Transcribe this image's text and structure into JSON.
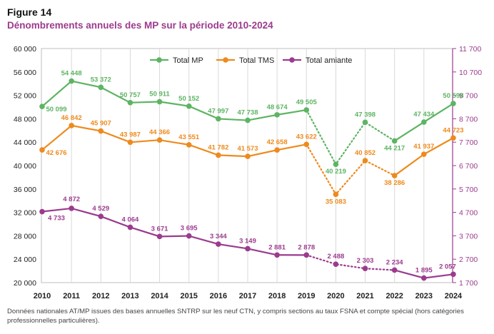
{
  "figure_label": "Figure 14",
  "title": "Dénombrements annuels des MP sur la période 2010-2024",
  "note": "Données nationales AT/MP issues des bases annuelles SNTRP sur les neuf CTN, y compris sections au taux FSNA et compte spécial (hors catégories professionnelles particulières).",
  "chart_data": {
    "type": "line",
    "title": "Dénombrements annuels des MP sur la période 2010-2024",
    "x": [
      "2010",
      "2011",
      "2012",
      "2013",
      "2014",
      "2015",
      "2016",
      "2017",
      "2018",
      "2019",
      "2020",
      "2021",
      "2022",
      "2023",
      "2024"
    ],
    "left_axis": {
      "range": [
        20000,
        60000
      ],
      "ticks": [
        20000,
        24000,
        28000,
        32000,
        36000,
        40000,
        44000,
        48000,
        52000,
        56000,
        60000
      ],
      "tick_labels": [
        "20 000",
        "24 000",
        "28 000",
        "32 000",
        "36 000",
        "40 000",
        "44 000",
        "48 000",
        "52 000",
        "56 000",
        "60 000"
      ]
    },
    "right_axis": {
      "range": [
        1700,
        11700
      ],
      "ticks": [
        1700,
        2700,
        3700,
        4700,
        5700,
        6700,
        7700,
        8700,
        9700,
        10700,
        11700
      ],
      "tick_labels": [
        "1 700",
        "2 700",
        "3 700",
        "4 700",
        "5 700",
        "6 700",
        "7 700",
        "8 700",
        "9 700",
        "10 700",
        "11 700"
      ],
      "color": "#9b3b8e"
    },
    "grid": "vertical",
    "legend_position": "top",
    "dotted_segment": [
      "2019",
      "2022"
    ],
    "series": [
      {
        "name": "Total MP",
        "axis": "left",
        "color": "#5db463",
        "values": [
          50099,
          54448,
          53372,
          50757,
          50911,
          50152,
          47997,
          47738,
          48674,
          49505,
          40219,
          47398,
          44217,
          47434,
          50598
        ],
        "labels": [
          "50 099",
          "54 448",
          "53 372",
          "50 757",
          "50 911",
          "50 152",
          "47 997",
          "47 738",
          "48 674",
          "49 505",
          "40 219",
          "47 398",
          "44 217",
          "47 434",
          "50 598"
        ]
      },
      {
        "name": "Total TMS",
        "axis": "left",
        "color": "#ee8a1d",
        "values": [
          42676,
          46842,
          45907,
          43987,
          44366,
          43551,
          41782,
          41573,
          42658,
          43622,
          35083,
          40852,
          38286,
          41937,
          44723
        ],
        "labels": [
          "42 676",
          "46 842",
          "45 907",
          "43 987",
          "44 366",
          "43 551",
          "41 782",
          "41 573",
          "42 658",
          "43 622",
          "35 083",
          "40 852",
          "38 286",
          "41 937",
          "44 723"
        ]
      },
      {
        "name": "Total amiante",
        "axis": "right",
        "color": "#9b3b8e",
        "values": [
          4733,
          4872,
          4529,
          4064,
          3671,
          3695,
          3344,
          3149,
          2881,
          2878,
          2488,
          2303,
          2234,
          1895,
          2057
        ],
        "labels": [
          "4 733",
          "4 872",
          "4 529",
          "4 064",
          "3 671",
          "3 695",
          "3 344",
          "3 149",
          "2 881",
          "2 878",
          "2 488",
          "2 303",
          "2 234",
          "1 895",
          "2 057"
        ]
      }
    ]
  }
}
